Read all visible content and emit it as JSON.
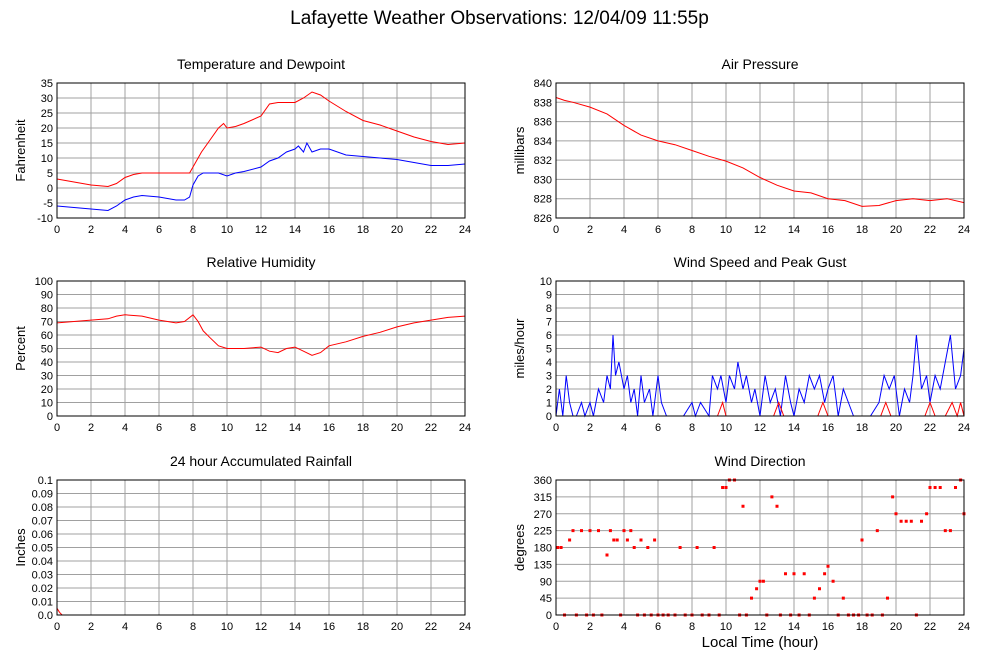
{
  "title": "Lafayette Weather Observations: 12/04/09 11:55p",
  "xlabel": "Local Time (hour)",
  "colors": {
    "red": "#ff0000",
    "blue": "#0000ff",
    "grid": "#a0a0a0"
  },
  "chart_data": [
    {
      "id": "temp",
      "type": "line",
      "title": "Temperature and Dewpoint",
      "ylabel": "Fahrenheit",
      "xlim": [
        0,
        24
      ],
      "ylim": [
        -10,
        35
      ],
      "xticks": [
        0,
        2,
        4,
        6,
        8,
        10,
        12,
        14,
        16,
        18,
        20,
        22,
        24
      ],
      "yticks": [
        -10,
        -5,
        0,
        5,
        10,
        15,
        20,
        25,
        30,
        35
      ],
      "grid": true,
      "series": [
        {
          "color": "#ff0000",
          "x": [
            0,
            1,
            2,
            3,
            3.5,
            4,
            4.5,
            5,
            6,
            7,
            7.5,
            7.8,
            8,
            8.5,
            9,
            9.5,
            9.8,
            10,
            10.5,
            11,
            12,
            12.5,
            13,
            14,
            14.5,
            15,
            15.5,
            16,
            17,
            18,
            19,
            20,
            21,
            22,
            23,
            24
          ],
          "y": [
            3,
            2,
            1,
            0.5,
            1.5,
            3.5,
            4.5,
            5,
            5,
            5,
            5,
            5,
            7,
            12,
            16,
            20,
            21.5,
            20,
            20.5,
            21.5,
            24,
            28,
            28.5,
            28.5,
            30,
            32,
            31,
            29,
            25.5,
            22.5,
            21,
            19,
            17,
            15.5,
            14.5,
            15
          ]
        },
        {
          "color": "#0000ff",
          "x": [
            0,
            1,
            2,
            3,
            3.5,
            4,
            4.5,
            5,
            6,
            7,
            7.5,
            7.8,
            8,
            8.3,
            8.6,
            9,
            9.5,
            10,
            10.5,
            11,
            12,
            12.5,
            13,
            13.5,
            14,
            14.2,
            14.5,
            14.7,
            15,
            15.5,
            16,
            17,
            18,
            19,
            20,
            21,
            22,
            23,
            24
          ],
          "y": [
            -6,
            -6.5,
            -7,
            -7.5,
            -6,
            -4,
            -3,
            -2.5,
            -3,
            -4,
            -4,
            -3,
            1,
            4,
            5,
            5,
            5,
            4,
            5,
            5.5,
            7,
            9,
            10,
            12,
            13,
            14,
            12,
            15,
            12,
            13,
            13,
            11,
            10.5,
            10,
            9.5,
            8.5,
            7.5,
            7.5,
            8
          ]
        }
      ]
    },
    {
      "id": "pressure",
      "type": "line",
      "title": "Air Pressure",
      "ylabel": "millibars",
      "xlim": [
        0,
        24
      ],
      "ylim": [
        826,
        840
      ],
      "xticks": [
        0,
        2,
        4,
        6,
        8,
        10,
        12,
        14,
        16,
        18,
        20,
        22,
        24
      ],
      "yticks": [
        826,
        828,
        830,
        832,
        834,
        836,
        838,
        840
      ],
      "grid": true,
      "series": [
        {
          "color": "#ff0000",
          "x": [
            0,
            0.5,
            1,
            2,
            3,
            4,
            5,
            6,
            7,
            8,
            9,
            10,
            11,
            12,
            13,
            14,
            15,
            16,
            17,
            18,
            19,
            20,
            21,
            22,
            23,
            24
          ],
          "y": [
            838.5,
            838.2,
            838.0,
            837.5,
            836.8,
            835.6,
            834.6,
            834.0,
            833.6,
            833.0,
            832.4,
            831.9,
            831.2,
            830.2,
            829.4,
            828.8,
            828.6,
            828.0,
            827.8,
            827.2,
            827.3,
            827.8,
            828.0,
            827.8,
            828.0,
            827.6
          ]
        }
      ]
    },
    {
      "id": "humidity",
      "type": "line",
      "title": "Relative Humidity",
      "ylabel": "Percent",
      "xlim": [
        0,
        24
      ],
      "ylim": [
        0,
        100
      ],
      "xticks": [
        0,
        2,
        4,
        6,
        8,
        10,
        12,
        14,
        16,
        18,
        20,
        22,
        24
      ],
      "yticks": [
        0,
        10,
        20,
        30,
        40,
        50,
        60,
        70,
        80,
        90,
        100
      ],
      "grid": true,
      "series": [
        {
          "color": "#ff0000",
          "x": [
            0,
            1,
            2,
            3,
            3.5,
            4,
            5,
            6,
            7,
            7.5,
            8,
            8.3,
            8.6,
            9,
            9.5,
            10,
            11,
            12,
            12.5,
            13,
            13.5,
            14,
            14.5,
            15,
            15.5,
            16,
            17,
            18,
            19,
            20,
            21,
            22,
            23,
            24
          ],
          "y": [
            69,
            70,
            71,
            72,
            74,
            75,
            74,
            71,
            69,
            70,
            75,
            70,
            63,
            58,
            52,
            50,
            50,
            51,
            48,
            47,
            50,
            51,
            48,
            45,
            47,
            52,
            55,
            59,
            62,
            66,
            69,
            71,
            73,
            74
          ]
        }
      ]
    },
    {
      "id": "wind",
      "type": "line",
      "title": "Wind Speed and Peak Gust",
      "ylabel": "miles/hour",
      "xlim": [
        0,
        24
      ],
      "ylim": [
        0,
        10
      ],
      "xticks": [
        0,
        2,
        4,
        6,
        8,
        10,
        12,
        14,
        16,
        18,
        20,
        22,
        24
      ],
      "yticks": [
        0,
        1,
        2,
        3,
        4,
        5,
        6,
        7,
        8,
        9,
        10
      ],
      "grid": true,
      "series": [
        {
          "color": "#0000ff",
          "x": [
            0,
            0.2,
            0.4,
            0.6,
            0.8,
            1,
            1.2,
            1.5,
            1.7,
            2,
            2.2,
            2.5,
            2.8,
            3,
            3.2,
            3.35,
            3.5,
            3.7,
            4,
            4.2,
            4.4,
            4.6,
            4.8,
            5,
            5.2,
            5.5,
            5.7,
            6,
            6.2,
            6.5,
            7,
            7.5,
            8,
            8.2,
            8.5,
            9,
            9.2,
            9.5,
            9.7,
            10,
            10.2,
            10.5,
            10.7,
            11,
            11.2,
            11.5,
            11.7,
            12,
            12.3,
            12.6,
            12.9,
            13.2,
            13.5,
            13.8,
            14,
            14.3,
            14.6,
            14.9,
            15.2,
            15.5,
            15.8,
            16,
            16.3,
            16.6,
            16.9,
            17.2,
            17.5,
            18,
            18.5,
            19,
            19.3,
            19.6,
            19.9,
            20.2,
            20.5,
            20.8,
            21,
            21.2,
            21.5,
            21.8,
            22,
            22.3,
            22.6,
            22.9,
            23.2,
            23.5,
            23.8,
            24
          ],
          "y": [
            0,
            2,
            0,
            3,
            1,
            0,
            0,
            1,
            0,
            1,
            0,
            2,
            1,
            3,
            2,
            6,
            3,
            4,
            2,
            3,
            1,
            2,
            0,
            3,
            1,
            2,
            0,
            3,
            1,
            0,
            0,
            0,
            1,
            0,
            1,
            0,
            3,
            2,
            3,
            1,
            3,
            2,
            4,
            2,
            3,
            1,
            2,
            0,
            3,
            1,
            2,
            0,
            3,
            1,
            0,
            2,
            1,
            3,
            2,
            3,
            1,
            2,
            3,
            0,
            2,
            1,
            0,
            0,
            0,
            1,
            3,
            2,
            3,
            0,
            2,
            1,
            3,
            6,
            2,
            3,
            1,
            3,
            2,
            4,
            6,
            2,
            3,
            5
          ]
        },
        {
          "color": "#ff0000",
          "x": [
            0,
            9.5,
            9.8,
            10,
            12,
            12.8,
            13.1,
            13.4,
            15,
            15.4,
            15.7,
            16,
            16.1,
            16.4,
            18,
            19.1,
            19.4,
            19.7,
            21,
            21.7,
            22,
            22.3,
            22.6,
            22.9,
            23.3,
            23.6,
            23.8,
            24
          ],
          "y": [
            0,
            0,
            1,
            0,
            0,
            0,
            1,
            0,
            0,
            0,
            1,
            0,
            0,
            0,
            0,
            0,
            1,
            0,
            0,
            0,
            1,
            0,
            0,
            0,
            1,
            0,
            1,
            0
          ]
        }
      ]
    },
    {
      "id": "rain",
      "type": "line",
      "title": "24 hour Accumulated Rainfall",
      "ylabel": "Inches",
      "xlim": [
        0,
        24
      ],
      "ylim": [
        0,
        0.1
      ],
      "xticks": [
        0,
        2,
        4,
        6,
        8,
        10,
        12,
        14,
        16,
        18,
        20,
        22,
        24
      ],
      "yticks": [
        0.0,
        0.01,
        0.02,
        0.03,
        0.04,
        0.05,
        0.06,
        0.07,
        0.08,
        0.09,
        0.1
      ],
      "ytick_labels": [
        "0.0",
        "0.01",
        "0.02",
        "0.03",
        "0.04",
        "0.05",
        "0.06",
        "0.07",
        "0.08",
        "0.09",
        "0.1"
      ],
      "grid": true,
      "series": [
        {
          "color": "#ff0000",
          "x": [
            0,
            0.15,
            0.3,
            24
          ],
          "y": [
            0.005,
            0.002,
            0,
            0
          ]
        }
      ]
    },
    {
      "id": "direction",
      "type": "scatter",
      "title": "Wind Direction",
      "ylabel": "degrees",
      "xlim": [
        0,
        24
      ],
      "ylim": [
        0,
        360
      ],
      "xticks": [
        0,
        2,
        4,
        6,
        8,
        10,
        12,
        14,
        16,
        18,
        20,
        22,
        24
      ],
      "yticks": [
        0,
        45,
        90,
        135,
        180,
        225,
        270,
        315,
        360
      ],
      "grid": true,
      "series": [
        {
          "color": "#ff0000",
          "x": [
            0.1,
            0.3,
            0.5,
            0.8,
            1.0,
            1.2,
            1.5,
            1.8,
            2.0,
            2.2,
            2.5,
            2.7,
            3.0,
            3.2,
            3.4,
            3.6,
            3.8,
            4.0,
            4.2,
            4.4,
            4.6,
            4.8,
            5.0,
            5.2,
            5.4,
            5.6,
            5.8,
            6.0,
            6.3,
            6.6,
            7.0,
            7.3,
            7.6,
            8.0,
            8.3,
            8.6,
            9.0,
            9.3,
            9.6,
            9.8,
            10.0,
            10.2,
            10.5,
            10.8,
            11.0,
            11.2,
            11.5,
            11.8,
            12.0,
            12.2,
            12.4,
            12.7,
            13.0,
            13.2,
            13.5,
            13.8,
            14.0,
            14.3,
            14.6,
            14.9,
            15.2,
            15.5,
            15.8,
            16.0,
            16.3,
            16.6,
            16.9,
            17.2,
            17.5,
            17.8,
            18.0,
            18.3,
            18.6,
            18.9,
            19.2,
            19.5,
            19.8,
            20.0,
            20.3,
            20.6,
            20.9,
            21.2,
            21.5,
            21.8,
            22.0,
            22.3,
            22.6,
            22.9,
            23.2,
            23.5,
            23.8,
            24.0
          ],
          "y": [
            180,
            180,
            0,
            200,
            225,
            0,
            225,
            0,
            225,
            0,
            225,
            0,
            160,
            225,
            200,
            200,
            0,
            225,
            200,
            225,
            180,
            0,
            200,
            0,
            180,
            0,
            200,
            0,
            0,
            0,
            0,
            180,
            0,
            0,
            180,
            0,
            0,
            180,
            0,
            340,
            340,
            360,
            360,
            0,
            290,
            0,
            45,
            70,
            90,
            90,
            0,
            315,
            290,
            0,
            110,
            0,
            110,
            0,
            110,
            0,
            45,
            70,
            110,
            130,
            90,
            0,
            45,
            0,
            0,
            0,
            200,
            0,
            0,
            225,
            0,
            45,
            315,
            270,
            250,
            250,
            250,
            0,
            250,
            270,
            340,
            340,
            340,
            225,
            225,
            340,
            360,
            270
          ],
          "ms": 3
        }
      ]
    }
  ]
}
